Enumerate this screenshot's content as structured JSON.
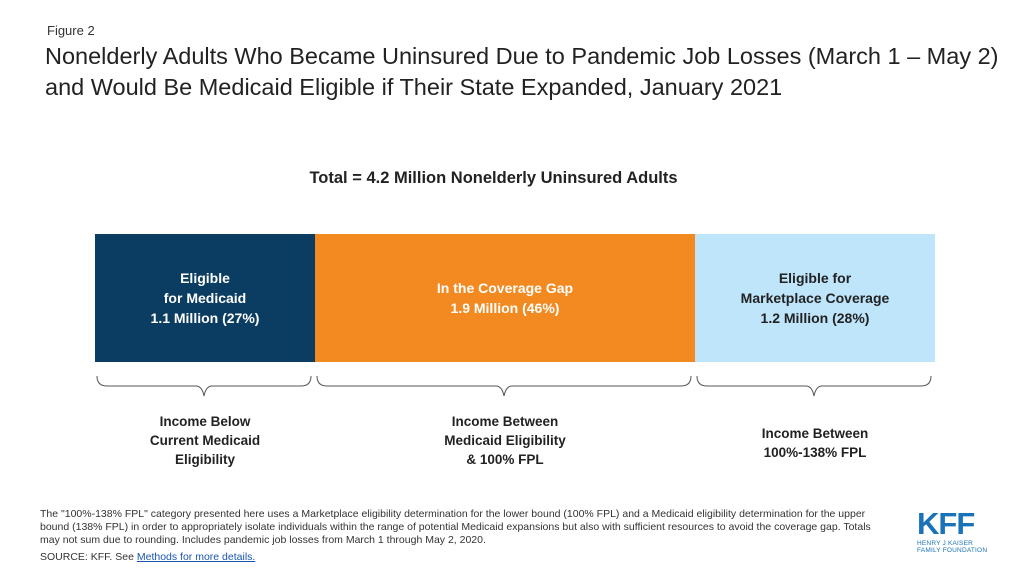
{
  "figure_label": "Figure 2",
  "title": "Nonelderly Adults Who Became Uninsured Due to Pandemic Job Losses (March 1 – May 2) and Would Be Medicaid Eligible if Their State Expanded, January 2021",
  "chart_data": {
    "type": "bar",
    "subtitle": "Total = 4.2 Million Nonelderly Uninsured Adults",
    "total_millions": 4.2,
    "segments": [
      {
        "label_lines": [
          "Eligible",
          "for Medicaid",
          "1.1 Million  (27%)"
        ],
        "value_millions": 1.1,
        "percent": 27,
        "color": "#0b3c61",
        "text_color": "#ffffff",
        "under_lines": [
          "Income Below",
          "Current Medicaid",
          "Eligibility"
        ]
      },
      {
        "label_lines": [
          "In the Coverage Gap",
          "1.9 Million  (46%)"
        ],
        "value_millions": 1.9,
        "percent": 46,
        "color": "#f28a21",
        "text_color": "#ffffff",
        "under_lines": [
          "Income Between",
          "Medicaid Eligibility",
          "& 100% FPL"
        ]
      },
      {
        "label_lines": [
          "Eligible  for",
          "Marketplace Coverage",
          "1.2 Million  (28%)"
        ],
        "value_millions": 1.2,
        "percent": 28,
        "color": "#bfe5fb",
        "text_color": "#222222",
        "under_lines": [
          "Income Between",
          "100%-138% FPL"
        ]
      }
    ]
  },
  "footnote": "The \"100%-138% FPL\" category presented here uses a Marketplace eligibility determination for the lower bound (100% FPL) and a Medicaid eligibility determination for the upper bound (138% FPL) in order to appropriately isolate individuals within the range of potential Medicaid expansions but also with sufficient resources to avoid the coverage gap. Totals may not sum due to rounding. Includes pandemic job losses from March 1 through May 2, 2020.",
  "source_prefix": "SOURCE: KFF. See ",
  "source_link": "Methods for more details.",
  "logo": {
    "main": "KFF",
    "line1": "HENRY J KAISER",
    "line2": "FAMILY FOUNDATION"
  }
}
